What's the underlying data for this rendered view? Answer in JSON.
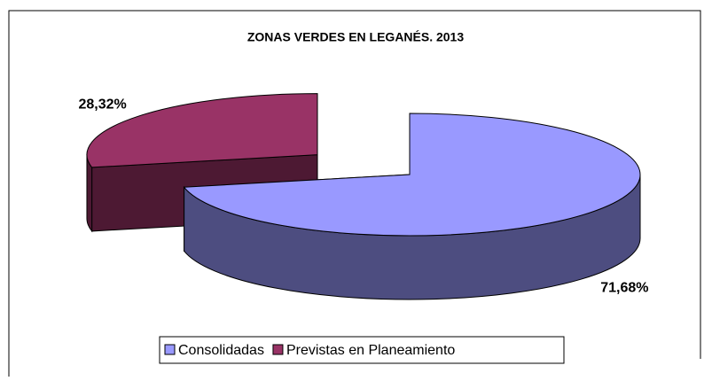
{
  "chart_data": {
    "type": "pie3d",
    "title": "ZONAS VERDES EN LEGANÉS. 2013",
    "categories": [
      "Consolidadas",
      "Previstas en Planeamiento"
    ],
    "values": [
      71.68,
      28.32
    ],
    "value_labels": [
      "71,68%",
      "28,32%"
    ],
    "colors": [
      "#9999ff",
      "#993366"
    ],
    "side_colors": [
      "#4d4d80",
      "#4d1933"
    ],
    "legend": "bottom"
  }
}
